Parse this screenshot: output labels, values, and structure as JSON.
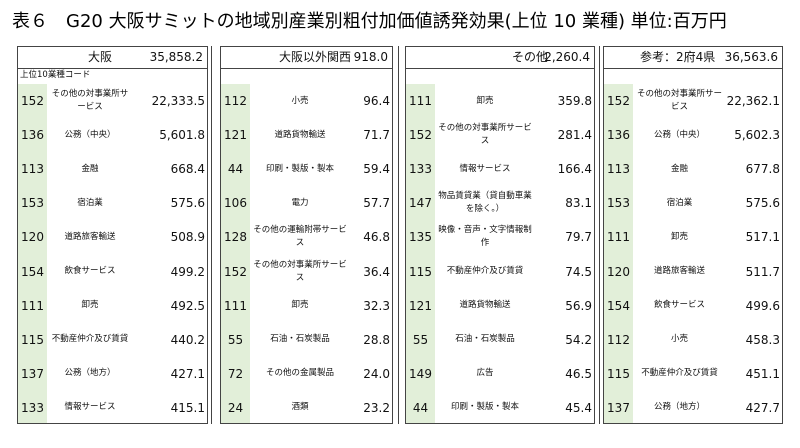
{
  "title": "表６　G20 大阪サミットの地域別産業別粗付加価値誘発効果(上位 10 業種) 単位:百万円",
  "sub_header": "上位10業種コード",
  "blocks": [
    {
      "name": "大阪",
      "total": "35,858.2",
      "rows": [
        {
          "code": "152",
          "label": "その他の対事業所サービス",
          "value": "22,333.5"
        },
        {
          "code": "136",
          "label": "公務（中央）",
          "value": "5,601.8"
        },
        {
          "code": "113",
          "label": "金融",
          "value": "668.4"
        },
        {
          "code": "153",
          "label": "宿泊業",
          "value": "575.6"
        },
        {
          "code": "120",
          "label": "道路旅客輸送",
          "value": "508.9"
        },
        {
          "code": "154",
          "label": "飲食サービス",
          "value": "499.2"
        },
        {
          "code": "111",
          "label": "卸売",
          "value": "492.5"
        },
        {
          "code": "115",
          "label": "不動産仲介及び賃貸",
          "value": "440.2"
        },
        {
          "code": "137",
          "label": "公務（地方）",
          "value": "427.1"
        },
        {
          "code": "133",
          "label": "情報サービス",
          "value": "415.1"
        }
      ]
    },
    {
      "name": "大阪以外関西",
      "total": "918.0",
      "rows": [
        {
          "code": "112",
          "label": "小売",
          "value": "96.4"
        },
        {
          "code": "121",
          "label": "道路貨物輸送",
          "value": "71.7"
        },
        {
          "code": "44",
          "label": "印刷・製版・製本",
          "value": "59.4"
        },
        {
          "code": "106",
          "label": "電力",
          "value": "57.7"
        },
        {
          "code": "128",
          "label": "その他の運輸附帯サービス",
          "value": "46.8"
        },
        {
          "code": "152",
          "label": "その他の対事業所サービス",
          "value": "36.4"
        },
        {
          "code": "111",
          "label": "卸売",
          "value": "32.3"
        },
        {
          "code": "55",
          "label": "石油・石炭製品",
          "value": "28.8"
        },
        {
          "code": "72",
          "label": "その他の金属製品",
          "value": "24.0"
        },
        {
          "code": "24",
          "label": "酒類",
          "value": "23.2"
        }
      ]
    },
    {
      "name": "その他",
      "total": "2,260.4",
      "rows": [
        {
          "code": "111",
          "label": "卸売",
          "value": "359.8"
        },
        {
          "code": "152",
          "label": "その他の対事業所サービス",
          "value": "281.4"
        },
        {
          "code": "133",
          "label": "情報サービス",
          "value": "166.4"
        },
        {
          "code": "147",
          "label": "物品賃貸業（貸自動車業を除く。）",
          "value": "83.1"
        },
        {
          "code": "135",
          "label": "映像・音声・文字情報制作",
          "value": "79.7"
        },
        {
          "code": "115",
          "label": "不動産仲介及び賃貸",
          "value": "74.5"
        },
        {
          "code": "121",
          "label": "道路貨物輸送",
          "value": "56.9"
        },
        {
          "code": "55",
          "label": "石油・石炭製品",
          "value": "54.2"
        },
        {
          "code": "149",
          "label": "広告",
          "value": "46.5"
        },
        {
          "code": "44",
          "label": "印刷・製版・製本",
          "value": "45.4"
        }
      ]
    },
    {
      "name": "参考：2府4県",
      "total": "36,563.6",
      "rows": [
        {
          "code": "152",
          "label": "その他の対事業所サービス",
          "value": "22,362.1"
        },
        {
          "code": "136",
          "label": "公務（中央）",
          "value": "5,602.3"
        },
        {
          "code": "113",
          "label": "金融",
          "value": "677.8"
        },
        {
          "code": "153",
          "label": "宿泊業",
          "value": "575.6"
        },
        {
          "code": "111",
          "label": "卸売",
          "value": "517.1"
        },
        {
          "code": "120",
          "label": "道路旅客輸送",
          "value": "511.7"
        },
        {
          "code": "154",
          "label": "飲食サービス",
          "value": "499.6"
        },
        {
          "code": "112",
          "label": "小売",
          "value": "458.3"
        },
        {
          "code": "115",
          "label": "不動産仲介及び賃貸",
          "value": "451.1"
        },
        {
          "code": "137",
          "label": "公務（地方）",
          "value": "427.7"
        }
      ]
    }
  ]
}
